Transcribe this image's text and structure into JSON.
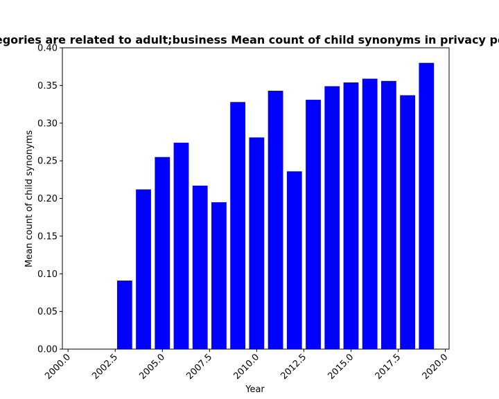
{
  "chart_data": {
    "type": "bar",
    "title": "Categories are related to adult;business Mean count of child synonyms in privacy policies",
    "xlabel": "Year",
    "ylabel": "Mean count of child synonyms",
    "bar_color": "#0000ff",
    "x": [
      2003,
      2004,
      2005,
      2006,
      2007,
      2008,
      2009,
      2010,
      2011,
      2012,
      2013,
      2014,
      2015,
      2016,
      2017,
      2018,
      2019
    ],
    "values": [
      0.091,
      0.212,
      0.255,
      0.274,
      0.217,
      0.195,
      0.328,
      0.281,
      0.343,
      0.236,
      0.331,
      0.349,
      0.354,
      0.359,
      0.356,
      0.337,
      0.38
    ],
    "xlim": [
      1999.7,
      2020.2
    ],
    "ylim": [
      0,
      0.4
    ],
    "xticks": [
      2000.0,
      2002.5,
      2005.0,
      2007.5,
      2010.0,
      2012.5,
      2015.0,
      2017.5,
      2020.0
    ],
    "xtick_labels": [
      "2000.0",
      "2002.5",
      "2005.0",
      "2007.5",
      "2010.0",
      "2012.5",
      "2015.0",
      "2017.5",
      "2020.0"
    ],
    "yticks": [
      0,
      0.05,
      0.1,
      0.15,
      0.2,
      0.25,
      0.3,
      0.35,
      0.4
    ],
    "ytick_labels": [
      "0.00",
      "0.05",
      "0.10",
      "0.15",
      "0.20",
      "0.25",
      "0.30",
      "0.35",
      "0.40"
    ],
    "grid": false,
    "legend": false
  }
}
